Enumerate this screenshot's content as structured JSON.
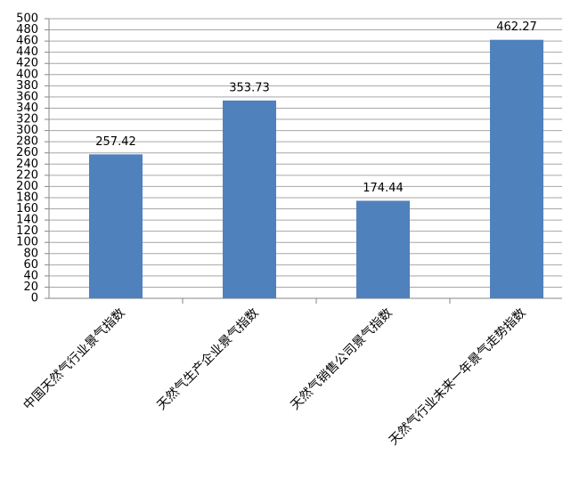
{
  "chart_data": {
    "type": "bar",
    "categories": [
      "中国天然气行业景气指数",
      "天然气生产企业景气指数",
      "天然气销售公司景气指数",
      "天然气行业未来一年景气走势指数"
    ],
    "values": [
      257.42,
      353.73,
      174.44,
      462.27
    ],
    "color": "#4f81bd",
    "ylim": [
      0,
      500
    ],
    "yticks": [
      0,
      20,
      40,
      60,
      80,
      100,
      120,
      140,
      160,
      180,
      200,
      220,
      240,
      260,
      280,
      300,
      320,
      340,
      360,
      380,
      400,
      420,
      440,
      460,
      480,
      500
    ],
    "grid": true
  }
}
